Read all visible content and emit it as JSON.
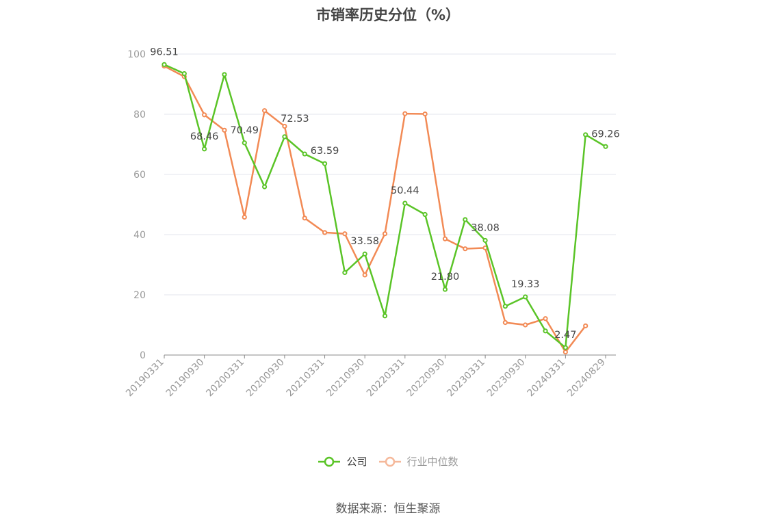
{
  "chart_data": {
    "type": "line",
    "title": "市销率历史分位（%）",
    "x": [
      "20190331",
      "20190630",
      "20190930",
      "20191231",
      "20200331",
      "20200630",
      "20200930",
      "20201231",
      "20210331",
      "20210630",
      "20210930",
      "20211231",
      "20220331",
      "20220630",
      "20220930",
      "20221231",
      "20230331",
      "20230630",
      "20230930",
      "20231231",
      "20240331",
      "20240630",
      "20240829"
    ],
    "x_tick_labels": [
      "20190331",
      "20190930",
      "20200331",
      "20200930",
      "20210331",
      "20210930",
      "20220331",
      "20220930",
      "20230331",
      "20230930",
      "20240331",
      "20240829"
    ],
    "series": [
      {
        "name": "公司",
        "color": "#5ac427",
        "values": [
          96.51,
          93.5,
          68.46,
          93.2,
          70.49,
          55.9,
          72.53,
          66.8,
          63.59,
          27.4,
          33.58,
          13.0,
          50.44,
          46.7,
          21.8,
          45.0,
          38.08,
          16.2,
          19.33,
          8.0,
          2.47,
          73.2,
          69.26
        ],
        "labeled_values": {
          "0": "96.51",
          "2": "68.46",
          "4": "70.49",
          "6": "72.53",
          "8": "63.59",
          "10": "33.58",
          "12": "50.44",
          "14": "21.80",
          "16": "38.08",
          "18": "19.33",
          "20": "2.47",
          "22": "69.26"
        }
      },
      {
        "name": "行业中位数",
        "color": "#f28a55",
        "values": [
          96.0,
          92.5,
          79.8,
          74.7,
          45.8,
          81.2,
          76.0,
          45.5,
          40.7,
          40.3,
          26.6,
          40.3,
          80.2,
          80.1,
          38.6,
          35.3,
          35.6,
          10.8,
          10.0,
          12.1,
          1.0,
          9.7,
          null
        ]
      }
    ],
    "ylim": [
      0,
      100
    ],
    "y_ticks": [
      "0",
      "20",
      "40",
      "60",
      "80",
      "100"
    ],
    "grid": true,
    "legend_position": "bottom-center"
  },
  "footer": {
    "source": "数据来源：恒生聚源"
  }
}
